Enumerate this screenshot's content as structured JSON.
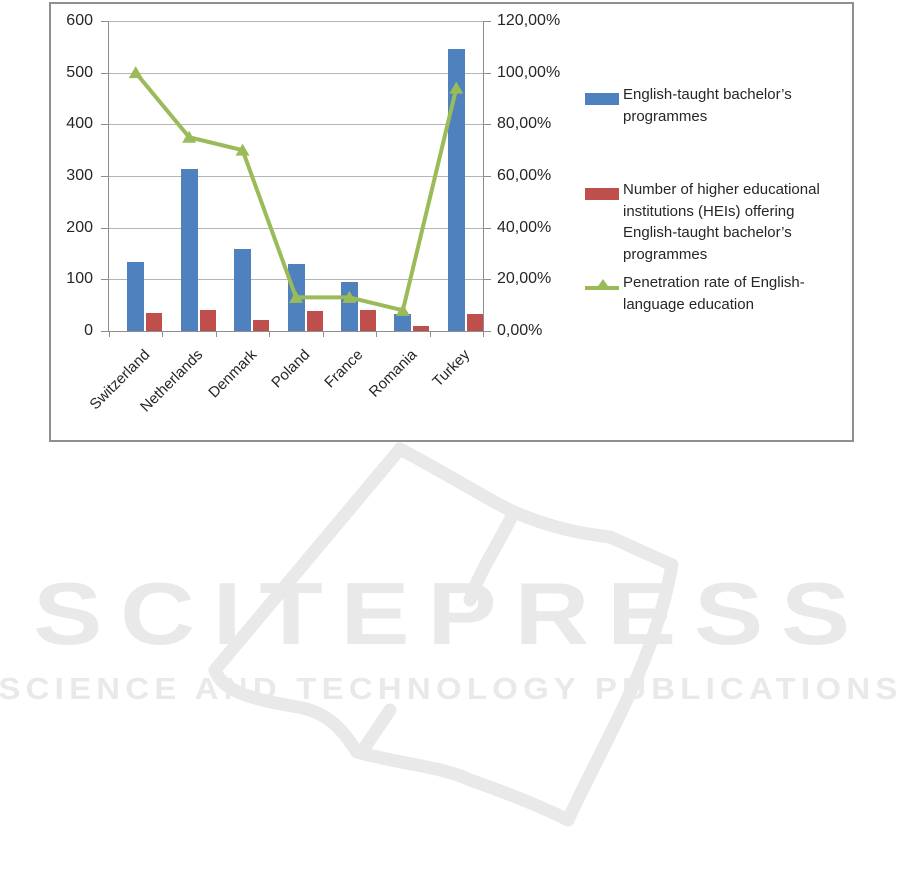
{
  "watermark": {
    "brand": "SCITEPRESS",
    "tagline": "SCIENCE AND TECHNOLOGY PUBLICATIONS",
    "color": "#e9e9e9"
  },
  "chart_data": {
    "type": "bar",
    "subtype": "combo-bar-line",
    "categories": [
      "Switzerland",
      "Netherlands",
      "Denmark",
      "Poland",
      "France",
      "Romania",
      "Turkey"
    ],
    "series": [
      {
        "name": "English-taught bachelor’s programmes",
        "type": "bar",
        "axis": "left",
        "color": "#4e81bd",
        "values": [
          133,
          313,
          158,
          130,
          95,
          32,
          545
        ]
      },
      {
        "name": "Number of higher educational institutions (HEIs) offering English-taught bachelor’s programmes",
        "type": "bar",
        "axis": "left",
        "color": "#bf4f4c",
        "values": [
          35,
          41,
          22,
          39,
          41,
          9,
          32
        ]
      },
      {
        "name": "Penetration rate of English-language education",
        "type": "line",
        "axis": "right",
        "color": "#9bbb59",
        "marker": "triangle",
        "values": [
          100,
          75,
          70,
          13,
          13,
          8,
          94
        ],
        "unit": "%"
      }
    ],
    "left_axis": {
      "min": 0,
      "max": 600,
      "step": 100,
      "labels": [
        "600",
        "500",
        "400",
        "300",
        "200",
        "100",
        "0"
      ]
    },
    "right_axis": {
      "min": 0,
      "max": 120,
      "step": 20,
      "labels": [
        "120,00%",
        "100,00%",
        "80,00%",
        "60,00%",
        "40,00%",
        "20,00%",
        "0,00%"
      ]
    },
    "grid": true,
    "legend_position": "right",
    "legend": {
      "items": [
        {
          "swatch": "bar",
          "color": "#4e81bd",
          "lines": [
            "English-taught bachelor’s",
            "programmes"
          ]
        },
        {
          "swatch": "bar",
          "color": "#bf4f4c",
          "lines": [
            "Number of higher educational",
            "institutions (HEIs) offering",
            "English-taught bachelor’s",
            "programmes"
          ]
        },
        {
          "swatch": "line-triangle",
          "color": "#9bbb59",
          "lines": [
            "Penetration rate of English-",
            "language education"
          ]
        }
      ]
    }
  }
}
